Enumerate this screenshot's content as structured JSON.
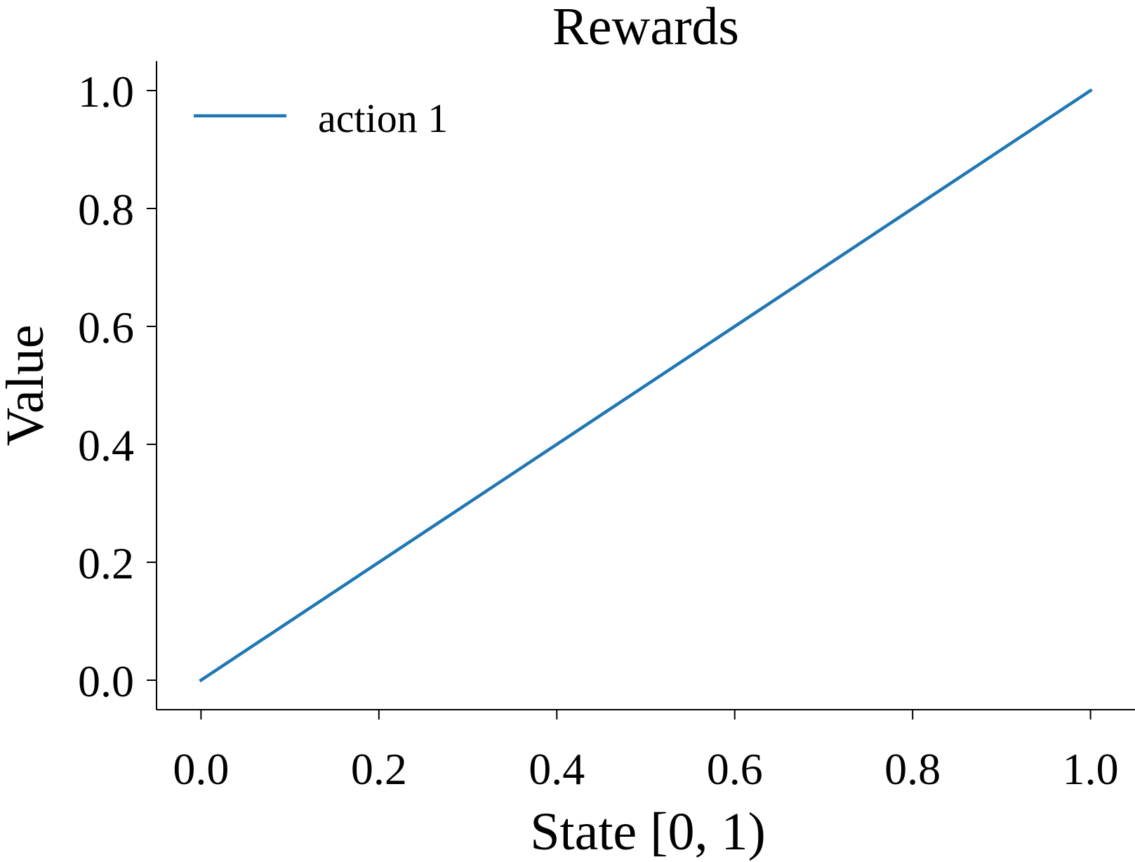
{
  "chart_data": {
    "type": "line",
    "title": "Rewards",
    "xlabel": "State [0, 1)",
    "ylabel": "Value",
    "xlim": [
      -0.05,
      1.05
    ],
    "ylim": [
      -0.05,
      1.05
    ],
    "xticks": [
      0.0,
      0.2,
      0.4,
      0.6,
      0.8,
      1.0
    ],
    "xtick_labels": [
      "0.0",
      "0.2",
      "0.4",
      "0.6",
      "0.8",
      "1.0"
    ],
    "yticks": [
      0.0,
      0.2,
      0.4,
      0.6,
      0.8,
      1.0
    ],
    "ytick_labels": [
      "0.0",
      "0.2",
      "0.4",
      "0.6",
      "0.8",
      "1.0"
    ],
    "grid": false,
    "legend_position": "top-left",
    "series": [
      {
        "name": "action 1",
        "color": "#1f77b4",
        "x": [
          0.0,
          1.0
        ],
        "y": [
          0.0,
          1.0
        ]
      }
    ]
  }
}
